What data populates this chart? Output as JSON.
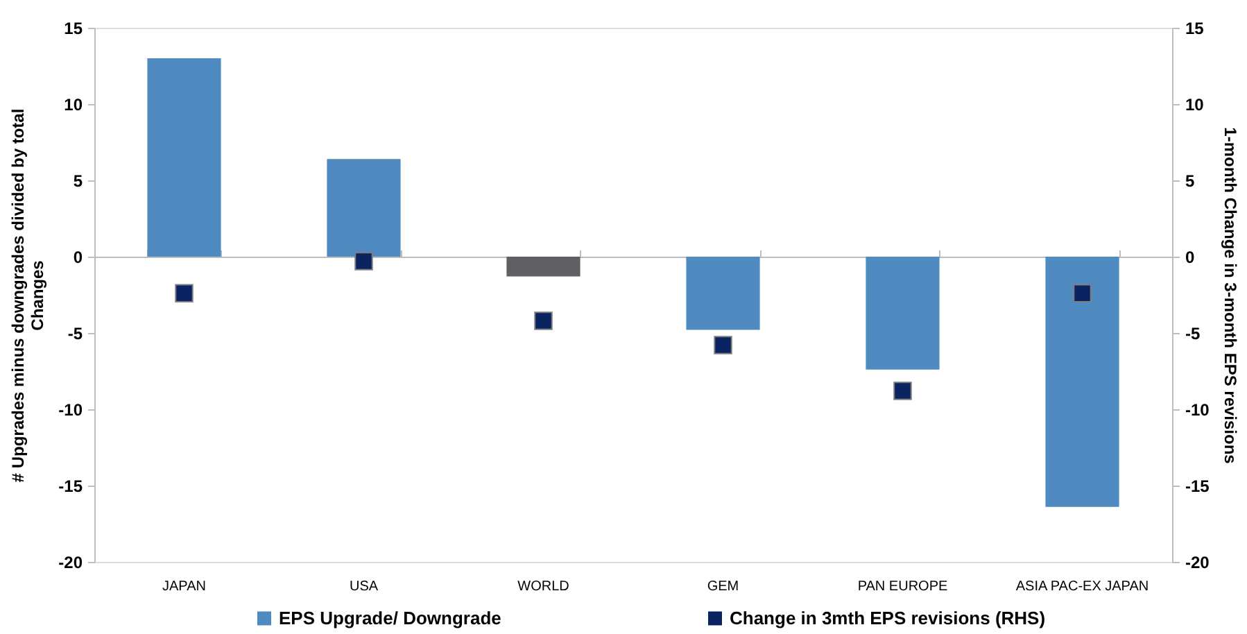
{
  "chart_data": {
    "type": "bar",
    "ylabel": "# Upgrades minus downgrades divided by total Changes",
    "y2label": "1-month Change in 3-month EPS revisions",
    "categories": [
      "JAPAN",
      "USA",
      "WORLD",
      "GEM",
      "PAN EUROPE",
      "ASIA PAC-EX JAPAN"
    ],
    "series": [
      {
        "name": "EPS Upgrade/ Downgrade",
        "color": "#4f8bc0",
        "colors": [
          "#4f8bc0",
          "#4f8bc0",
          "#5f6063",
          "#4f8bc0",
          "#4f8bc0",
          "#4f8bc0"
        ],
        "values": [
          13.0,
          6.4,
          -1.3,
          -4.8,
          -7.4,
          -16.4
        ]
      },
      {
        "name": "Change in 3mth EPS revisions (RHS)",
        "type": "scatter",
        "axis": "y2",
        "color": "#0a2462",
        "values": [
          -2.4,
          -0.3,
          -4.2,
          -5.8,
          -8.8,
          -2.4
        ]
      }
    ],
    "marker": "square",
    "ylim": [
      -20,
      15
    ],
    "yticks": [
      -20,
      -15,
      -10,
      -5,
      0,
      5,
      10,
      15
    ],
    "y2lim": [
      -20,
      15
    ],
    "y2ticks": [
      -20,
      -15,
      -10,
      -5,
      0,
      5,
      10,
      15
    ],
    "legend": "bottom"
  }
}
